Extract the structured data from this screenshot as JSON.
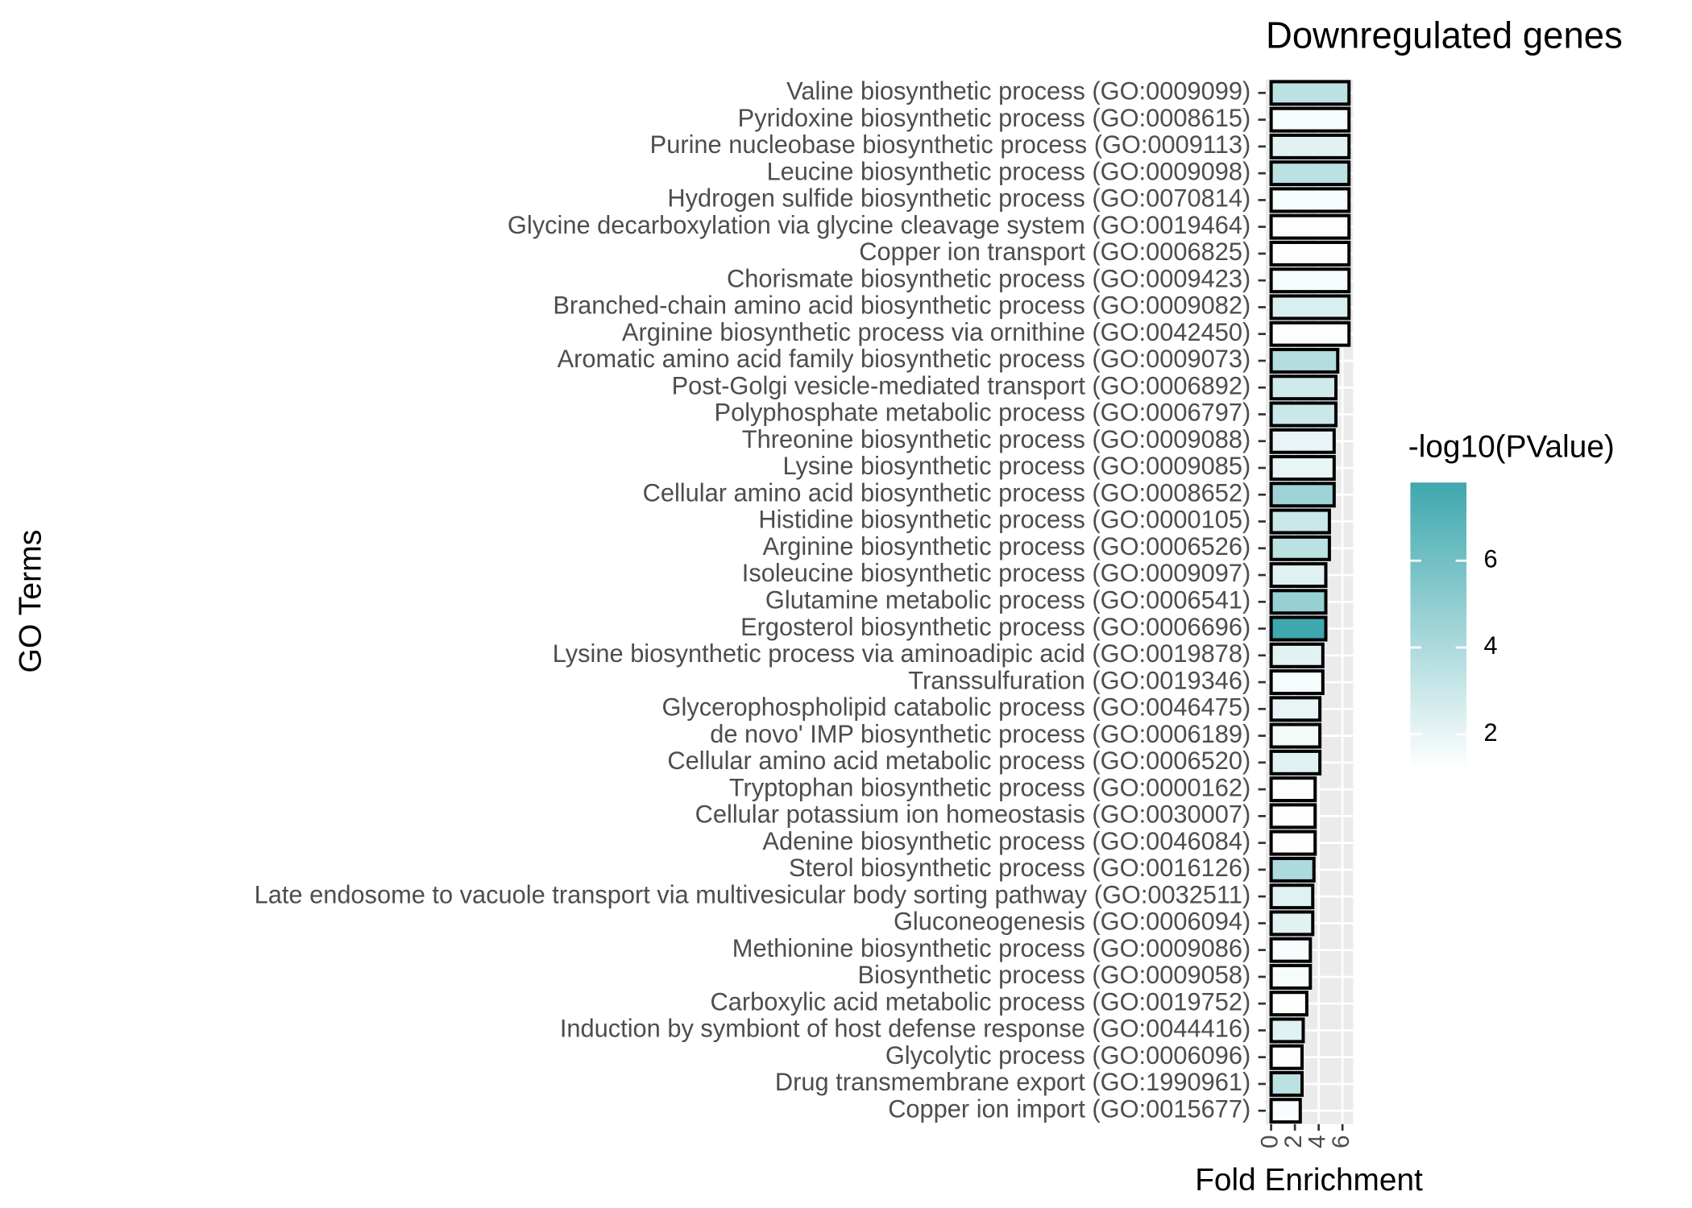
{
  "chart_data": {
    "type": "bar",
    "orientation": "horizontal",
    "title": "Downregulated genes",
    "x_label": "Fold Enrichment",
    "y_label": "GO Terms",
    "categories": [
      "Valine biosynthetic process (GO:0009099)",
      "Pyridoxine biosynthetic process (GO:0008615)",
      "Purine nucleobase biosynthetic process (GO:0009113)",
      "Leucine biosynthetic process (GO:0009098)",
      "Hydrogen sulfide biosynthetic process (GO:0070814)",
      "Glycine decarboxylation via glycine cleavage system (GO:0019464)",
      "Copper ion transport (GO:0006825)",
      "Chorismate biosynthetic process (GO:0009423)",
      "Branched-chain amino acid biosynthetic process (GO:0009082)",
      "Arginine biosynthetic process via ornithine (GO:0042450)",
      "Aromatic amino acid family biosynthetic process (GO:0009073)",
      "Post-Golgi vesicle-mediated transport (GO:0006892)",
      "Polyphosphate metabolic process (GO:0006797)",
      "Threonine biosynthetic process (GO:0009088)",
      "Lysine biosynthetic process (GO:0009085)",
      "Cellular amino acid biosynthetic process (GO:0008652)",
      "Histidine biosynthetic process (GO:0000105)",
      "Arginine biosynthetic process (GO:0006526)",
      "Isoleucine biosynthetic process (GO:0009097)",
      "Glutamine metabolic process (GO:0006541)",
      "Ergosterol biosynthetic process (GO:0006696)",
      "Lysine biosynthetic process via aminoadipic acid (GO:0019878)",
      "Transsulfuration (GO:0019346)",
      "Glycerophospholipid catabolic process (GO:0046475)",
      "de novo' IMP biosynthetic process (GO:0006189)",
      "Cellular amino acid metabolic process (GO:0006520)",
      "Tryptophan biosynthetic process (GO:0000162)",
      "Cellular potassium ion homeostasis (GO:0030007)",
      "Adenine biosynthetic process (GO:0046084)",
      "Sterol biosynthetic process (GO:0016126)",
      "Late endosome to vacuole transport via multivesicular body sorting pathway (GO:0032511)",
      "Gluconeogenesis (GO:0006094)",
      "Methionine biosynthetic process (GO:0009086)",
      "Biosynthetic process (GO:0009058)",
      "Carboxylic acid metabolic process (GO:0019752)",
      "Induction by symbiont of host defense response (GO:0044416)",
      "Glycolytic process (GO:0006096)",
      "Drug transmembrane export (GO:1990961)",
      "Copper ion import (GO:0015677)"
    ],
    "values": [
      6.55,
      6.55,
      6.55,
      6.55,
      6.55,
      6.55,
      6.55,
      6.55,
      6.55,
      6.55,
      5.6,
      5.45,
      5.45,
      5.3,
      5.3,
      5.3,
      4.9,
      4.9,
      4.6,
      4.6,
      4.6,
      4.35,
      4.35,
      4.1,
      4.1,
      4.1,
      3.7,
      3.7,
      3.7,
      3.6,
      3.5,
      3.5,
      3.3,
      3.3,
      3.0,
      2.7,
      2.6,
      2.6,
      2.45
    ],
    "color_values": [
      3.5,
      1.5,
      2.2,
      3.5,
      1.5,
      1.3,
      1.3,
      1.5,
      2.5,
      1.3,
      3.8,
      2.8,
      3.0,
      2.0,
      2.0,
      4.5,
      3.0,
      3.5,
      2.3,
      4.8,
      7.8,
      2.2,
      1.5,
      2.0,
      1.6,
      2.3,
      1.3,
      1.3,
      1.3,
      4.0,
      2.3,
      2.2,
      1.4,
      1.5,
      1.3,
      2.3,
      1.3,
      3.5,
      1.4
    ],
    "xlim": [
      -0.45,
      6.9
    ],
    "xticks": [
      0,
      2,
      4,
      6
    ],
    "grid": true,
    "bar_outline": "#000000",
    "color_scale": {
      "title": "-log10(PValue)",
      "low": "#ffffff",
      "high": "#3ea8ae",
      "lim": [
        1.2,
        7.8
      ],
      "ticks": [
        2,
        4,
        6
      ]
    }
  }
}
